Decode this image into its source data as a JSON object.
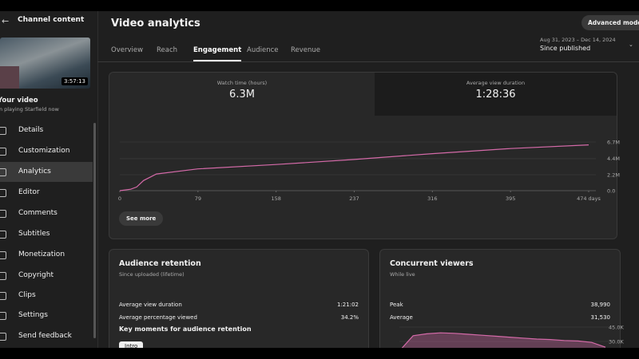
{
  "sidebar": {
    "title": "Channel content",
    "duration": "3:57:13",
    "video_label": "Your video",
    "video_title": "I'm playing Starfield now",
    "nav": [
      "Details",
      "Customization",
      "Analytics",
      "Editor",
      "Comments",
      "Subtitles",
      "Monetization",
      "Copyright",
      "Clips",
      "Settings",
      "Send feedback"
    ]
  },
  "header": {
    "title": "Video analytics",
    "advanced_mode": "Advanced mode",
    "date_range": "Aug 31, 2023 – Dec 14, 2024",
    "period": "Since published"
  },
  "tabs": [
    "Overview",
    "Reach",
    "Engagement",
    "Audience",
    "Revenue"
  ],
  "metrics": [
    {
      "label": "Watch time (hours)",
      "value": "6.3M"
    },
    {
      "label": "Average view duration",
      "value": "1:28:36"
    }
  ],
  "see_more": "See more",
  "retention": {
    "title": "Audience retention",
    "subtitle": "Since uploaded (lifetime)",
    "rows": [
      [
        "Average view duration",
        "1:21:02"
      ],
      [
        "Average percentage viewed",
        "34.2%"
      ]
    ],
    "key_moments": "Key moments for audience retention",
    "button": "Intro"
  },
  "concurrent": {
    "title": "Concurrent viewers",
    "subtitle": "While live",
    "rows": [
      [
        "Peak",
        "38,990"
      ],
      [
        "Average",
        "31,530"
      ]
    ]
  },
  "chart_data": [
    {
      "type": "line",
      "x": [
        0,
        11,
        17,
        24,
        37,
        79,
        158,
        237,
        316,
        395,
        474
      ],
      "values": [
        0,
        200000,
        500000,
        1400000,
        2300000,
        3000000,
        3600000,
        4300000,
        5100000,
        5800000,
        6300000
      ],
      "color": "#d46aa8",
      "xlim": [
        0,
        474
      ],
      "ylim": [
        0,
        6700000
      ],
      "xticks": [
        0,
        79,
        158,
        237,
        316,
        395,
        {
          "value": 474,
          "label": "474 days"
        }
      ],
      "yticks": [
        {
          "value": 0,
          "label": "0.0"
        },
        {
          "value": 2200000,
          "label": "2.2M"
        },
        {
          "value": 4400000,
          "label": "4.4M"
        },
        {
          "value": 6700000,
          "label": "6.7M"
        }
      ],
      "grid": true
    },
    {
      "type": "area",
      "values": [
        20000,
        36000,
        38000,
        38990,
        38500,
        37500,
        36500,
        35500,
        34500,
        33500,
        32500,
        32000,
        31000,
        30500,
        29000,
        24000
      ],
      "color": "#d46aa8",
      "ylim": [
        0,
        48000
      ],
      "yticks": [
        {
          "value": 45000,
          "label": "45.0K"
        },
        {
          "value": 30000,
          "label": "30.0K"
        }
      ],
      "grid": true
    }
  ]
}
